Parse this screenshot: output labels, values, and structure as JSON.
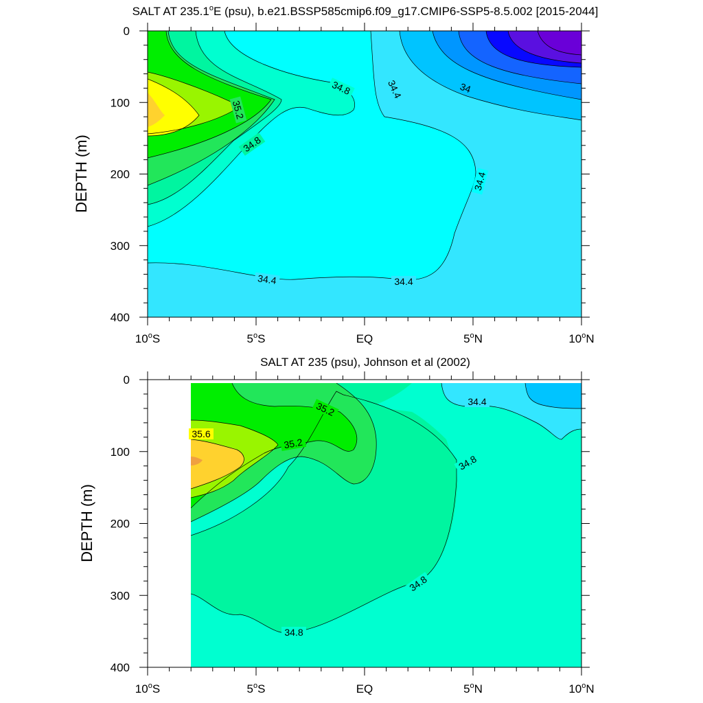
{
  "chart_data": [
    {
      "type": "contour",
      "title": "SALT AT 235.1°E (psu), b.e21.BSSP585cmip6.f09_g17.CMIP6-SSP5-8.5.002 [2015-2044]",
      "title_prefix": "SALT AT 235.1",
      "title_sup": "o",
      "title_suffix": "E (psu), b.e21.BSSP585cmip6.f09_g17.CMIP6-SSP5-8.5.002 [2015-2044]",
      "ylabel": "DEPTH (m)",
      "xlim": [
        -10,
        10
      ],
      "ylim": [
        400,
        0
      ],
      "y_reversed": true,
      "x_ticks": [
        {
          "value": -10,
          "label": "10",
          "sup": "o",
          "suffix": "S"
        },
        {
          "value": -5,
          "label": "5",
          "sup": "o",
          "suffix": "S"
        },
        {
          "value": 0,
          "label": "EQ",
          "sup": "",
          "suffix": ""
        },
        {
          "value": 5,
          "label": "5",
          "sup": "o",
          "suffix": "N"
        },
        {
          "value": 10,
          "label": "10",
          "sup": "o",
          "suffix": "N"
        }
      ],
      "y_ticks": [
        0,
        100,
        200,
        300,
        400
      ],
      "contour_levels_psu": [
        33.2,
        33.4,
        33.6,
        33.8,
        34.0,
        34.2,
        34.4,
        34.6,
        34.8,
        35.0,
        35.2,
        35.4,
        35.6,
        35.8
      ],
      "contour_labels": [
        "34.8",
        "35.2",
        "34.8",
        "34.4",
        "34",
        "34.4",
        "34.4",
        "34.4"
      ],
      "domain_x_start": -10
    },
    {
      "type": "contour",
      "title": "SALT AT 235 (psu), Johnson et al (2002)",
      "title_prefix": "SALT AT 235 (psu), Johnson et al (2002)",
      "title_sup": "",
      "title_suffix": "",
      "ylabel": "DEPTH (m)",
      "xlim": [
        -10,
        10
      ],
      "ylim": [
        400,
        0
      ],
      "y_reversed": true,
      "x_ticks": [
        {
          "value": -10,
          "label": "10",
          "sup": "o",
          "suffix": "S"
        },
        {
          "value": -5,
          "label": "5",
          "sup": "o",
          "suffix": "S"
        },
        {
          "value": 0,
          "label": "EQ",
          "sup": "",
          "suffix": ""
        },
        {
          "value": 5,
          "label": "5",
          "sup": "o",
          "suffix": "N"
        },
        {
          "value": 10,
          "label": "10",
          "sup": "o",
          "suffix": "N"
        }
      ],
      "y_ticks": [
        0,
        100,
        200,
        300,
        400
      ],
      "contour_levels_psu": [
        34.2,
        34.4,
        34.6,
        34.8,
        35.0,
        35.2,
        35.4,
        35.6,
        35.8
      ],
      "contour_labels": [
        "35.6",
        "35.2",
        "35.2",
        "34.4",
        "34.8",
        "34.8",
        "34.8"
      ],
      "domain_x_start": -8
    }
  ],
  "colors": {
    "salt_33_2_33_4": "#5a10e0",
    "salt_33_4_33_6": "#0808ff",
    "salt_33_6_33_8": "#1464ff",
    "salt_33_8_34_0": "#0096ff",
    "salt_34_0_34_2": "#00c4ff",
    "salt_34_2_34_4": "#33e6ff",
    "salt_34_4_34_6": "#00ffff",
    "salt_34_6_34_8": "#00ffd0",
    "salt_34_8_35_0": "#00f5a0",
    "salt_35_0_35_2": "#22e65a",
    "salt_35_2_35_4": "#00ee00",
    "salt_35_4_35_6": "#99f500",
    "salt_35_6_35_8": "#ffff00",
    "salt_above_35_8": "#ffd22e",
    "contour_line": "#000000",
    "axis": "#000000"
  }
}
